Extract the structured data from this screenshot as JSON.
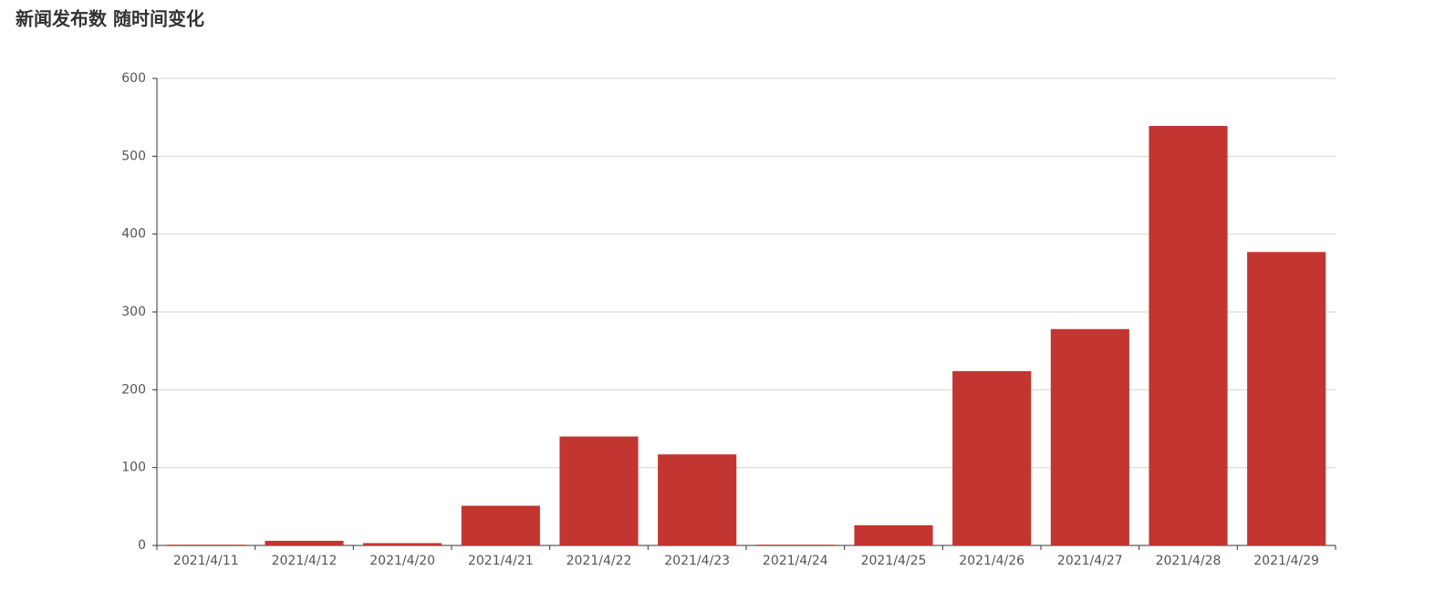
{
  "chart_data": {
    "type": "bar",
    "title": "新闻发布数 随时间变化",
    "categories": [
      "2021/4/11",
      "2021/4/12",
      "2021/4/20",
      "2021/4/21",
      "2021/4/22",
      "2021/4/23",
      "2021/4/24",
      "2021/4/25",
      "2021/4/26",
      "2021/4/27",
      "2021/4/28",
      "2021/4/29"
    ],
    "values": [
      1,
      6,
      3,
      51,
      140,
      117,
      1,
      26,
      224,
      278,
      539,
      377
    ],
    "color": "#c23531",
    "ylim": [
      0,
      600
    ],
    "yticks": [
      0,
      100,
      200,
      300,
      400,
      500,
      600
    ],
    "grid": true
  }
}
